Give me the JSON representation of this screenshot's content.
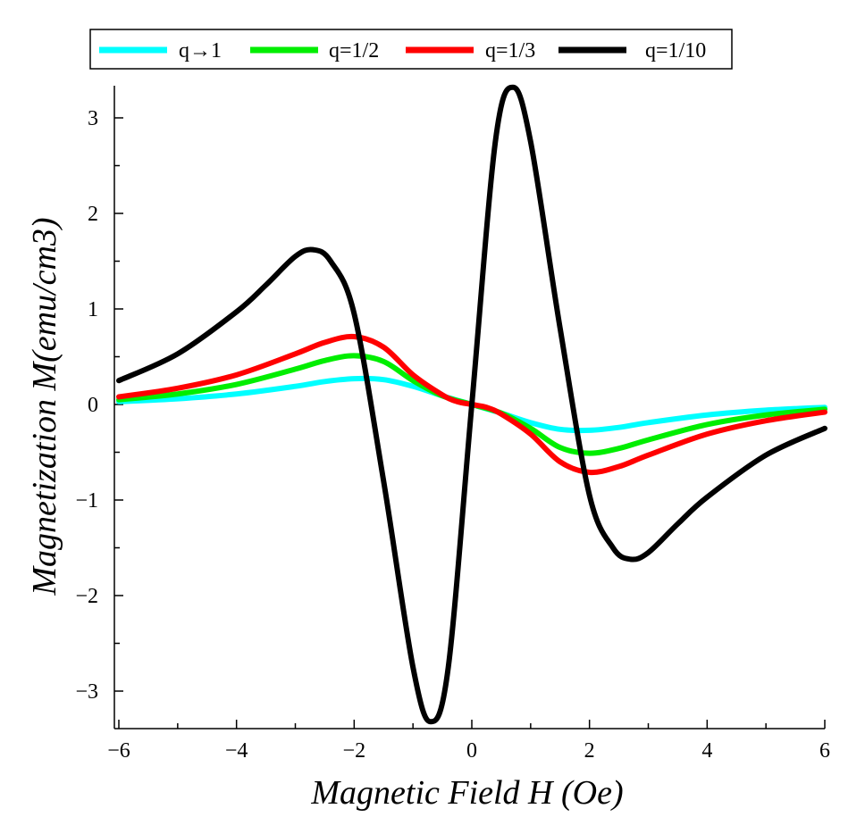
{
  "chart_data": {
    "type": "line",
    "title": "",
    "xlabel": "Magnetic Field H (Oe)",
    "ylabel": "Magnetization M(emu/cm3)",
    "xlim": [
      -6,
      6
    ],
    "ylim": [
      -3.35,
      3.35
    ],
    "x_ticks": [
      -6,
      -4,
      -2,
      0,
      2,
      4,
      6
    ],
    "x_tick_labels": [
      "−6",
      "−4",
      "−2",
      "0",
      "2",
      "4",
      "6"
    ],
    "y_ticks": [
      -3,
      -2,
      -1,
      0,
      1,
      2,
      3
    ],
    "y_tick_labels": [
      "−3",
      "−2",
      "−1",
      "0",
      "1",
      "2",
      "3"
    ],
    "grid": false,
    "legend_position": "top",
    "series": [
      {
        "name": "q→1",
        "color": "#00ffff",
        "x": [
          -6,
          -5,
          -4,
          -3,
          -2.5,
          -2,
          -1.5,
          -1,
          -0.5,
          0,
          0.5,
          1,
          1.5,
          2,
          2.5,
          3,
          4,
          5,
          6
        ],
        "y": [
          0.03,
          0.06,
          0.11,
          0.19,
          0.24,
          0.27,
          0.26,
          0.19,
          0.09,
          0,
          -0.09,
          -0.19,
          -0.26,
          -0.27,
          -0.24,
          -0.19,
          -0.11,
          -0.06,
          -0.03
        ]
      },
      {
        "name": "q=1/2",
        "color": "#00ee00",
        "x": [
          -6,
          -5,
          -4,
          -3,
          -2.5,
          -2,
          -1.5,
          -1,
          -0.5,
          0,
          0.5,
          1,
          1.5,
          2,
          2.5,
          3,
          4,
          5,
          6
        ],
        "y": [
          0.05,
          0.11,
          0.21,
          0.37,
          0.46,
          0.51,
          0.45,
          0.25,
          0.09,
          0,
          -0.09,
          -0.25,
          -0.45,
          -0.51,
          -0.46,
          -0.37,
          -0.21,
          -0.11,
          -0.05
        ]
      },
      {
        "name": "q=1/3",
        "color": "#ff0000",
        "x": [
          -6,
          -5,
          -4,
          -3,
          -2.5,
          -2,
          -1.5,
          -1,
          -0.5,
          -0.25,
          0,
          0.25,
          0.5,
          1,
          1.5,
          2,
          2.5,
          3,
          4,
          5,
          6
        ],
        "y": [
          0.08,
          0.17,
          0.31,
          0.53,
          0.65,
          0.71,
          0.6,
          0.31,
          0.1,
          0.03,
          0,
          -0.03,
          -0.1,
          -0.31,
          -0.6,
          -0.71,
          -0.65,
          -0.53,
          -0.31,
          -0.17,
          -0.08
        ]
      },
      {
        "name": "q=1/10",
        "color": "#000000",
        "x": [
          -6,
          -5,
          -4,
          -3.5,
          -3,
          -2.7,
          -2.4,
          -2,
          -1.5,
          -1,
          -0.7,
          -0.4,
          0,
          0.4,
          0.7,
          1,
          1.5,
          2,
          2.4,
          2.7,
          3,
          3.5,
          4,
          5,
          6
        ],
        "y": [
          0.25,
          0.53,
          0.97,
          1.25,
          1.55,
          1.62,
          1.5,
          0.95,
          -0.8,
          -2.75,
          -3.32,
          -2.75,
          0,
          2.75,
          3.32,
          2.75,
          0.8,
          -0.95,
          -1.5,
          -1.62,
          -1.55,
          -1.25,
          -0.97,
          -0.53,
          -0.25
        ]
      }
    ]
  }
}
